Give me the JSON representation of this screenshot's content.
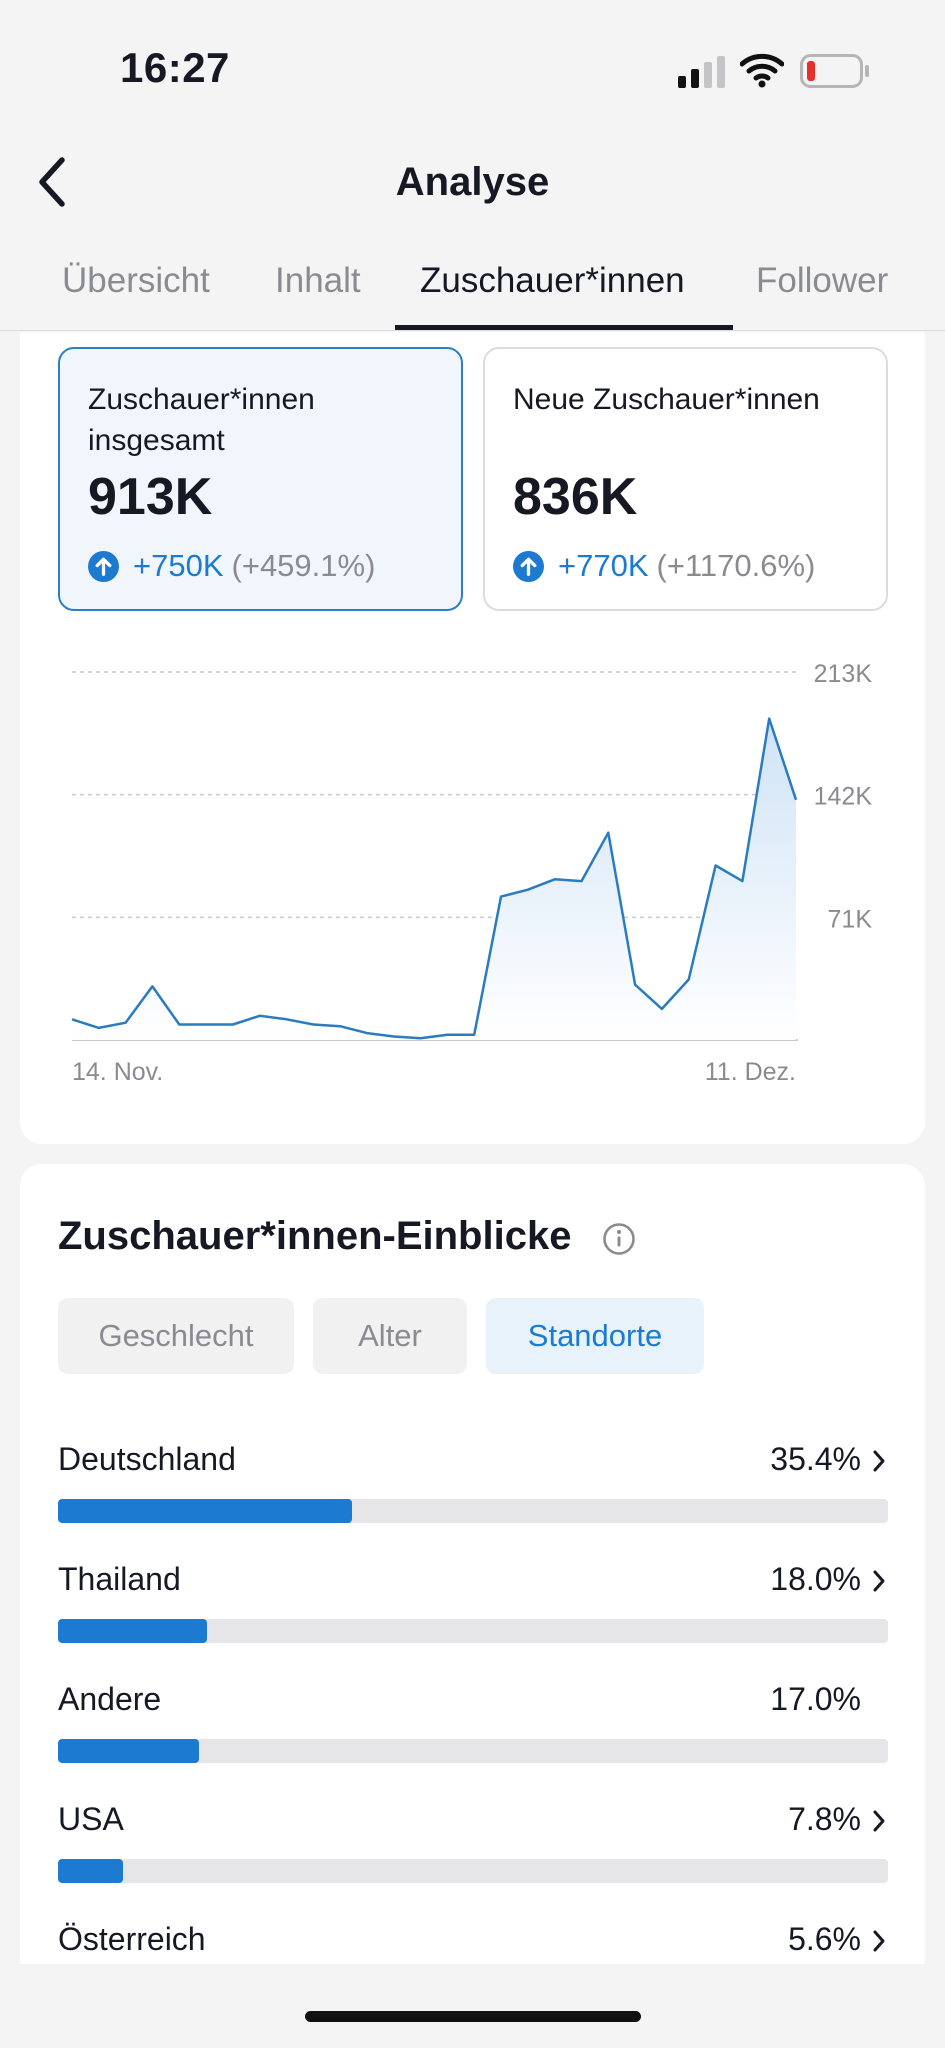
{
  "status_bar": {
    "time": "16:27"
  },
  "header": {
    "title": "Analyse"
  },
  "tabs": [
    "Übersicht",
    "Inhalt",
    "Zuschauer*innen",
    "Follower"
  ],
  "metrics": [
    {
      "label": "Zuschauer*innen insgesamt",
      "value": "913K",
      "change": "+750K",
      "change_pct": "(+459.1%)"
    },
    {
      "label": "Neue Zuschauer*innen",
      "value": "836K",
      "change": "+770K",
      "change_pct": "(+1170.6%)"
    }
  ],
  "chart_data": {
    "type": "area",
    "y_ticks": [
      "213K",
      "142K",
      "71K"
    ],
    "y_tick_values": [
      213,
      142,
      71
    ],
    "x_labels": [
      "14. Nov.",
      "11. Dez."
    ],
    "ylim": [
      0,
      213
    ],
    "unit": "K",
    "values": [
      12,
      7,
      10,
      31,
      9,
      9,
      9,
      14,
      12,
      9,
      8,
      4,
      2,
      1,
      3,
      3,
      83,
      87,
      93,
      92,
      120,
      32,
      18,
      35,
      101,
      92,
      186,
      139
    ],
    "colors": {
      "line": "#2a7bc0",
      "fill_top": "#cfe3f6",
      "fill_bottom": "#ffffff"
    }
  },
  "insights": {
    "title": "Zuschauer*innen-Einblicke",
    "filters": [
      "Geschlecht",
      "Alter",
      "Standorte"
    ],
    "locations": [
      {
        "name": "Deutschland",
        "pct_label": "35.4%",
        "pct": 35.4,
        "chevron": true
      },
      {
        "name": "Thailand",
        "pct_label": "18.0%",
        "pct": 18.0,
        "chevron": true
      },
      {
        "name": "Andere",
        "pct_label": "17.0%",
        "pct": 17.0,
        "chevron": false
      },
      {
        "name": "USA",
        "pct_label": "7.8%",
        "pct": 7.8,
        "chevron": true
      },
      {
        "name": "Österreich",
        "pct_label": "5.6%",
        "pct": 5.6,
        "chevron": true
      }
    ]
  },
  "colors": {
    "accent": "#1c7ad1",
    "selected_card_bg": "#f1f6fc",
    "text": "#161823",
    "muted": "#8a8b91"
  }
}
